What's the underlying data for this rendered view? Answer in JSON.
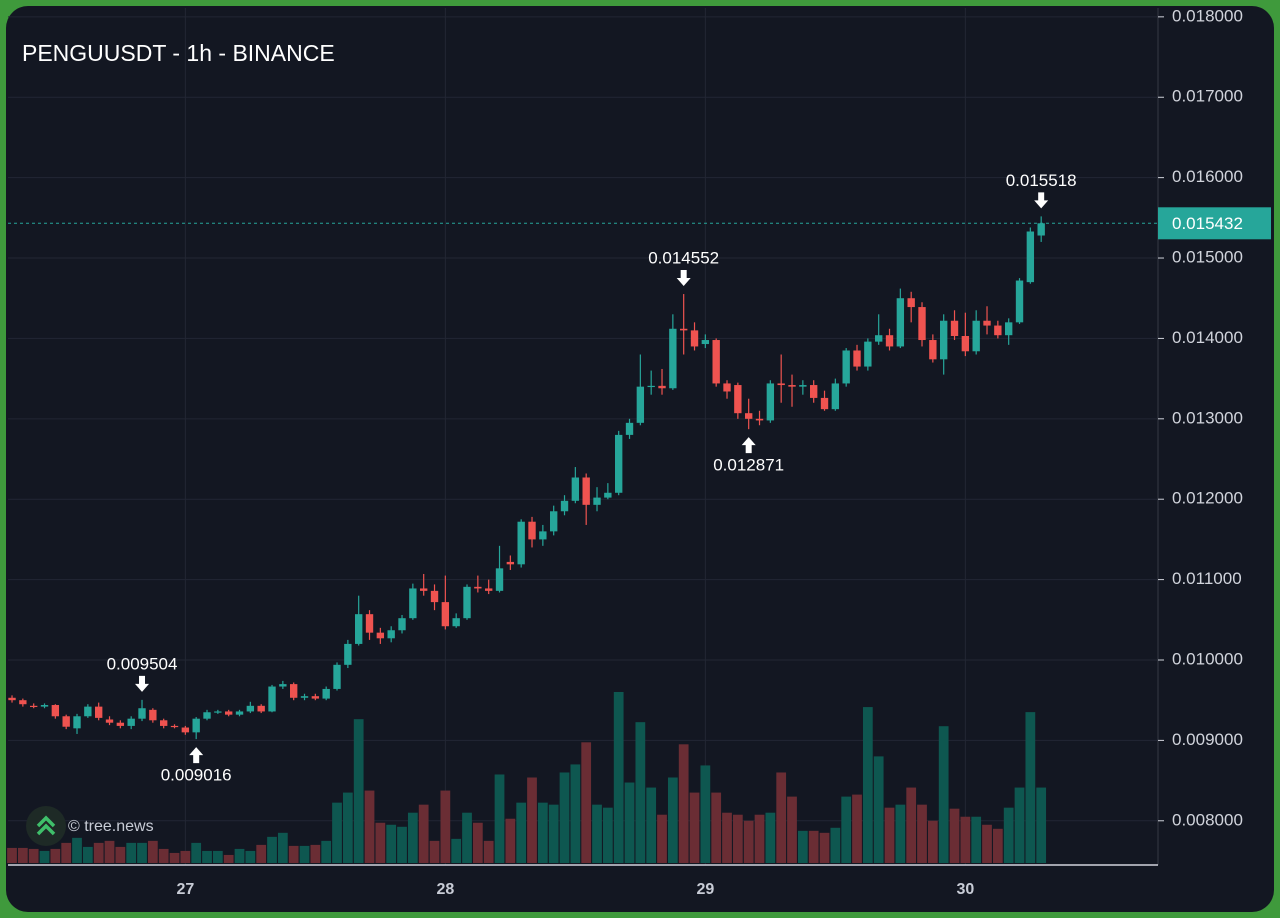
{
  "chart_data": {
    "type": "candlestick",
    "title": "PENGUUSDT - 1h - BINANCE",
    "watermark": "© tree.news",
    "categories": [
      null,
      null,
      null,
      null,
      null,
      null,
      null,
      null,
      null,
      null,
      null,
      null,
      null,
      null,
      null,
      null,
      "27",
      null,
      null,
      null,
      null,
      null,
      null,
      null,
      null,
      null,
      null,
      null,
      null,
      null,
      null,
      null,
      null,
      null,
      null,
      null,
      null,
      null,
      null,
      null,
      "28",
      null,
      null,
      null,
      null,
      null,
      null,
      null,
      null,
      null,
      null,
      null,
      null,
      null,
      null,
      null,
      null,
      null,
      null,
      null,
      null,
      null,
      null,
      null,
      "29",
      null,
      null,
      null,
      null,
      null,
      null,
      null,
      null,
      null,
      null,
      null,
      null,
      null,
      null,
      null,
      null,
      null,
      null,
      null,
      null,
      null,
      null,
      null,
      "30",
      null,
      null,
      null,
      null,
      null,
      null,
      null
    ],
    "open": [
      0.00953,
      0.0095,
      0.00943,
      0.00942,
      0.00944,
      0.0093,
      0.00915,
      0.0093,
      0.00942,
      0.00926,
      0.00922,
      0.00918,
      0.00927,
      0.00938,
      0.00925,
      0.00918,
      0.00916,
      0.0091,
      0.00927,
      0.00935,
      0.00936,
      0.00932,
      0.00936,
      0.00943,
      0.00936,
      0.00967,
      0.0097,
      0.00953,
      0.00955,
      0.00952,
      0.00964,
      0.00994,
      0.0102,
      0.01057,
      0.01034,
      0.01027,
      0.01037,
      0.01052,
      0.01089,
      0.01086,
      0.01072,
      0.01042,
      0.01052,
      0.01091,
      0.01089,
      0.01086,
      0.01122,
      0.01119,
      0.01172,
      0.0115,
      0.0116,
      0.01185,
      0.01198,
      0.01227,
      0.01193,
      0.01202,
      0.01208,
      0.0128,
      0.01295,
      0.0134,
      0.01341,
      0.01338,
      0.01412,
      0.0141,
      0.01393,
      0.01398,
      0.01344,
      0.01342,
      0.01307,
      0.013,
      0.01298,
      0.01344,
      0.01342,
      0.0134,
      0.01342,
      0.01326,
      0.01312,
      0.01344,
      0.01385,
      0.01365,
      0.01396,
      0.01404,
      0.0139,
      0.0145,
      0.01439,
      0.01398,
      0.01374,
      0.01422,
      0.01403,
      0.01384,
      0.01422,
      0.01416,
      0.01404,
      0.0142,
      0.0147,
      0.01528
    ],
    "high": [
      0.00956,
      0.00952,
      0.00946,
      0.00946,
      0.00945,
      0.00932,
      0.00933,
      0.00945,
      0.00947,
      0.0093,
      0.00925,
      0.0093,
      0.009504,
      0.0094,
      0.00927,
      0.0092,
      0.00918,
      0.00929,
      0.00938,
      0.00938,
      0.00938,
      0.00938,
      0.00948,
      0.00945,
      0.00969,
      0.00974,
      0.00972,
      0.00958,
      0.00958,
      0.00967,
      0.00997,
      0.01025,
      0.0108,
      0.01062,
      0.0104,
      0.01042,
      0.01056,
      0.01095,
      0.01107,
      0.01094,
      0.01105,
      0.01058,
      0.01094,
      0.01105,
      0.011,
      0.01142,
      0.0113,
      0.01175,
      0.01178,
      0.01168,
      0.01192,
      0.01205,
      0.0124,
      0.01232,
      0.01215,
      0.0122,
      0.01285,
      0.013,
      0.0138,
      0.0136,
      0.01362,
      0.0143,
      0.014552,
      0.0142,
      0.01405,
      0.014,
      0.01348,
      0.01345,
      0.01325,
      0.0131,
      0.01348,
      0.0138,
      0.01355,
      0.01348,
      0.01348,
      0.01335,
      0.0135,
      0.01388,
      0.01392,
      0.014,
      0.0143,
      0.01412,
      0.01462,
      0.01458,
      0.01445,
      0.01405,
      0.0143,
      0.01435,
      0.01432,
      0.01435,
      0.0144,
      0.01422,
      0.01425,
      0.01475,
      0.01538,
      0.015518
    ],
    "low": [
      0.00947,
      0.00942,
      0.0094,
      0.0094,
      0.00927,
      0.00914,
      0.00908,
      0.00928,
      0.00925,
      0.00919,
      0.00915,
      0.00914,
      0.00924,
      0.00922,
      0.00915,
      0.00915,
      0.00907,
      0.009016,
      0.00925,
      0.00933,
      0.0093,
      0.0093,
      0.00934,
      0.00934,
      0.00935,
      0.00964,
      0.0095,
      0.0095,
      0.0095,
      0.0095,
      0.00962,
      0.0099,
      0.01018,
      0.01025,
      0.0102,
      0.01022,
      0.01033,
      0.0105,
      0.0108,
      0.01062,
      0.01038,
      0.0104,
      0.0105,
      0.01084,
      0.01082,
      0.01084,
      0.01112,
      0.01115,
      0.0114,
      0.01142,
      0.01155,
      0.0118,
      0.01195,
      0.01168,
      0.01185,
      0.012,
      0.01205,
      0.01275,
      0.01292,
      0.0133,
      0.0133,
      0.01336,
      0.0138,
      0.01385,
      0.01388,
      0.0134,
      0.01325,
      0.013,
      0.012871,
      0.01292,
      0.01295,
      0.0132,
      0.01315,
      0.0133,
      0.0132,
      0.0131,
      0.0131,
      0.0134,
      0.0136,
      0.0136,
      0.01392,
      0.01385,
      0.01388,
      0.0142,
      0.0139,
      0.0137,
      0.01355,
      0.01398,
      0.01378,
      0.0138,
      0.01405,
      0.014,
      0.01392,
      0.01418,
      0.01468,
      0.0152
    ],
    "close": [
      0.0095,
      0.00945,
      0.00942,
      0.00944,
      0.0093,
      0.00917,
      0.0093,
      0.00942,
      0.00928,
      0.00922,
      0.00918,
      0.00927,
      0.0094,
      0.00925,
      0.00918,
      0.00917,
      0.0091,
      0.00927,
      0.00935,
      0.00936,
      0.00932,
      0.00936,
      0.00943,
      0.00936,
      0.00967,
      0.0097,
      0.00953,
      0.00955,
      0.00952,
      0.00964,
      0.00994,
      0.0102,
      0.01057,
      0.01034,
      0.01027,
      0.01037,
      0.01052,
      0.01089,
      0.01086,
      0.01072,
      0.01042,
      0.01052,
      0.01091,
      0.01089,
      0.01086,
      0.01114,
      0.01119,
      0.01172,
      0.0115,
      0.0116,
      0.01185,
      0.01198,
      0.01227,
      0.01193,
      0.01202,
      0.01208,
      0.0128,
      0.01295,
      0.0134,
      0.01341,
      0.01338,
      0.01412,
      0.0141,
      0.0139,
      0.01398,
      0.01344,
      0.01334,
      0.01307,
      0.013,
      0.01298,
      0.01344,
      0.01342,
      0.0134,
      0.01342,
      0.01326,
      0.01312,
      0.01344,
      0.01385,
      0.01365,
      0.01396,
      0.01404,
      0.0139,
      0.0145,
      0.01439,
      0.01398,
      0.01374,
      0.01422,
      0.01403,
      0.01384,
      0.01422,
      0.01416,
      0.01404,
      0.0142,
      0.01472,
      0.01533,
      0.015432
    ],
    "volume": [
      15,
      15,
      14,
      12,
      14,
      20,
      25,
      16,
      20,
      22,
      16,
      20,
      20,
      22,
      14,
      10,
      12,
      20,
      12,
      12,
      8,
      14,
      12,
      18,
      26,
      30,
      17,
      17,
      18,
      22,
      60,
      70,
      143,
      72,
      40,
      38,
      36,
      50,
      58,
      22,
      72,
      24,
      50,
      40,
      22,
      88,
      44,
      60,
      85,
      60,
      58,
      90,
      98,
      120,
      58,
      55,
      170,
      80,
      140,
      75,
      48,
      85,
      118,
      70,
      97,
      70,
      50,
      48,
      42,
      48,
      50,
      90,
      66,
      32,
      32,
      30,
      35,
      66,
      68,
      155,
      106,
      55,
      58,
      75,
      58,
      42,
      136,
      54,
      46,
      46,
      38,
      34,
      55,
      75,
      150,
      75
    ],
    "up_color": "#26a69a",
    "down_color": "#ef5350",
    "volume_up_color": "#0e5750",
    "volume_down_color": "#6a2d34",
    "markers": [
      {
        "at": 12,
        "side": "high"
      },
      {
        "at": 17,
        "side": "low"
      },
      {
        "at": 62,
        "side": "high"
      },
      {
        "at": 68,
        "side": "low"
      },
      {
        "at": 95,
        "side": "high"
      }
    ],
    "ylim": [
      0.00745,
      0.01811
    ],
    "yticks": [
      {
        "value": 0.008,
        "label": "0.008000"
      },
      {
        "value": 0.009,
        "label": "0.009000"
      },
      {
        "value": 0.01,
        "label": "0.010000"
      },
      {
        "value": 0.011,
        "label": "0.011000"
      },
      {
        "value": 0.012,
        "label": "0.012000"
      },
      {
        "value": 0.013,
        "label": "0.013000"
      },
      {
        "value": 0.014,
        "label": "0.014000"
      },
      {
        "value": 0.015,
        "label": "0.015000"
      },
      {
        "value": 0.016,
        "label": "0.016000"
      },
      {
        "value": 0.017,
        "label": "0.017000"
      },
      {
        "value": 0.018,
        "label": "0.018000"
      }
    ],
    "grid": true
  }
}
